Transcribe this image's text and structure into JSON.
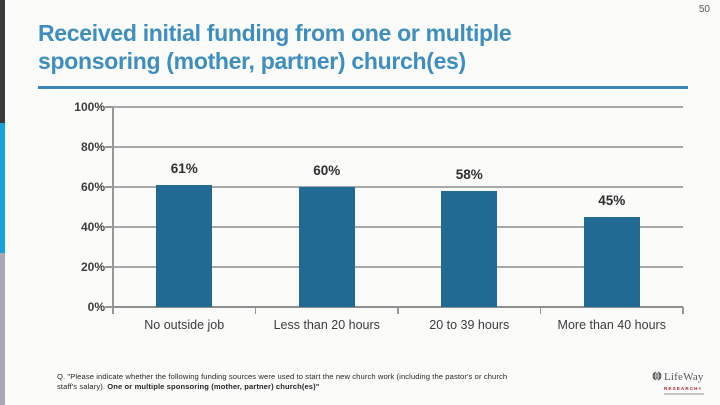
{
  "page": {
    "number": "50"
  },
  "title": {
    "line1": "Received initial funding from one or multiple",
    "line2": "sponsoring (mother, partner) church(es)"
  },
  "chart_data": {
    "type": "bar",
    "title": "Received initial funding from one or multiple sponsoring (mother, partner) church(es)",
    "categories": [
      "No outside job",
      "Less than 20 hours",
      "20 to 39 hours",
      "More than 40 hours"
    ],
    "values": [
      61,
      60,
      58,
      45
    ],
    "value_labels": [
      "61%",
      "60%",
      "58%",
      "45%"
    ],
    "xlabel": "",
    "ylabel": "",
    "ylim": [
      0,
      100
    ],
    "yticks": [
      0,
      20,
      40,
      60,
      80,
      100
    ],
    "ytick_suffix": "%",
    "grid": "horizontal",
    "legend": "none",
    "bar_color": "#216a93"
  },
  "footnote": {
    "line1": "Q. \"Please indicate whether the following funding sources were used to start the new church work (including the pastor's or church",
    "line2_regular": "staff's salary). ",
    "line2_bold": "One or multiple sponsoring (mother, partner) church(es)\""
  },
  "logo": {
    "name": "LifeWay",
    "sub": "RESEARCH",
    "reg": "®"
  },
  "colors": {
    "title_blue": "#3e8ec0",
    "rule_blue": "#3a87b8",
    "bar_blue": "#216a93",
    "strip_dark": "#3a3a3c",
    "strip_blue": "#17a0da",
    "strip_gray": "#a8a9b4",
    "logo_red": "#ae2430"
  }
}
